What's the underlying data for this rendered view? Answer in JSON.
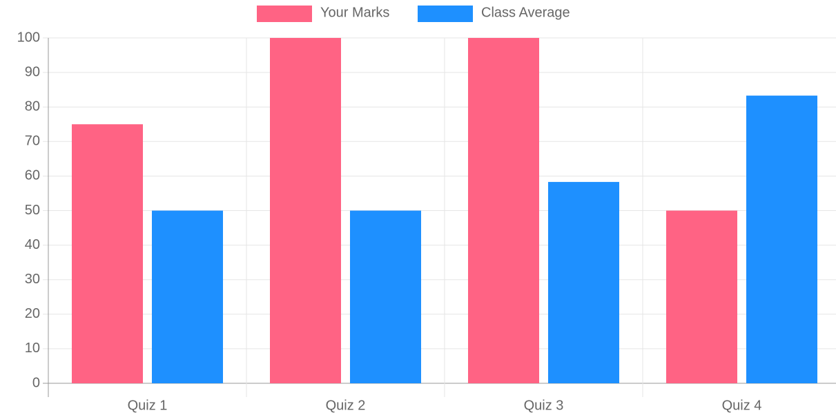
{
  "chart_data": {
    "type": "bar",
    "categories": [
      "Quiz 1",
      "Quiz 2",
      "Quiz 3",
      "Quiz 4"
    ],
    "series": [
      {
        "name": "Your Marks",
        "color": "#ff6384",
        "values": [
          75,
          100,
          100,
          50
        ]
      },
      {
        "name": "Class Average",
        "color": "#1e90ff",
        "values": [
          50,
          50,
          58.3,
          83.3
        ]
      }
    ],
    "ylim": [
      0,
      100
    ],
    "yticks": [
      0,
      10,
      20,
      30,
      40,
      50,
      60,
      70,
      80,
      90,
      100
    ],
    "grid": true,
    "legend": "top"
  }
}
